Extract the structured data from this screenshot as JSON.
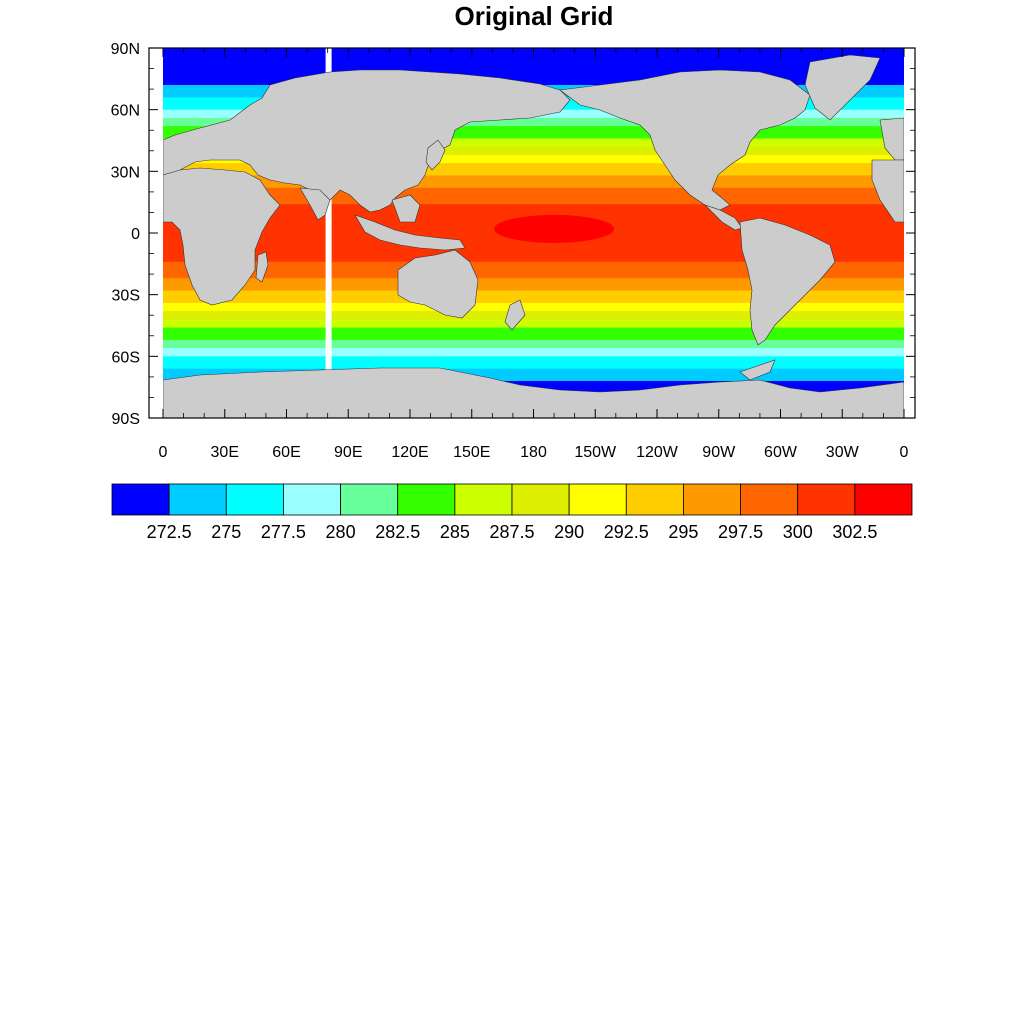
{
  "title": "Original Grid",
  "map": {
    "projection": "cylindrical equidistant",
    "lon_range": [
      0,
      360
    ],
    "lat_range": [
      -90,
      90
    ],
    "land_color": "#cccccc",
    "missing_color": "#ffffff",
    "lat_ticks": [
      {
        "value": 90,
        "label": "90N"
      },
      {
        "value": 60,
        "label": "60N"
      },
      {
        "value": 30,
        "label": "30N"
      },
      {
        "value": 0,
        "label": "0"
      },
      {
        "value": -30,
        "label": "30S"
      },
      {
        "value": -60,
        "label": "60S"
      },
      {
        "value": -90,
        "label": "90S"
      }
    ],
    "lon_ticks": [
      {
        "value": 0,
        "label": "0"
      },
      {
        "value": 30,
        "label": "30E"
      },
      {
        "value": 60,
        "label": "60E"
      },
      {
        "value": 90,
        "label": "90E"
      },
      {
        "value": 120,
        "label": "120E"
      },
      {
        "value": 150,
        "label": "150E"
      },
      {
        "value": 180,
        "label": "180"
      },
      {
        "value": 210,
        "label": "150W"
      },
      {
        "value": 240,
        "label": "120W"
      },
      {
        "value": 270,
        "label": "90W"
      },
      {
        "value": 300,
        "label": "60W"
      },
      {
        "value": 330,
        "label": "30W"
      },
      {
        "value": 360,
        "label": "0"
      }
    ]
  },
  "colorbar": {
    "colors": [
      "#0000ff",
      "#00ccff",
      "#00ffff",
      "#99ffff",
      "#66ff99",
      "#33ff00",
      "#ccff00",
      "#ddee00",
      "#ffff00",
      "#ffcc00",
      "#ff9900",
      "#ff6600",
      "#ff3300",
      "#ff0000"
    ],
    "labels": [
      "272.5",
      "275",
      "277.5",
      "280",
      "282.5",
      "285",
      "287.5",
      "290",
      "292.5",
      "295",
      "297.5",
      "300",
      "302.5"
    ]
  },
  "chart_data": {
    "type": "heatmap",
    "title": "Original Grid",
    "xlabel": "",
    "ylabel": "",
    "xlim": [
      0,
      360
    ],
    "ylim": [
      -90,
      90
    ],
    "levels": [
      272.5,
      275,
      277.5,
      280,
      282.5,
      285,
      287.5,
      290,
      292.5,
      295,
      297.5,
      300,
      302.5
    ],
    "legend": "bottom"
  }
}
